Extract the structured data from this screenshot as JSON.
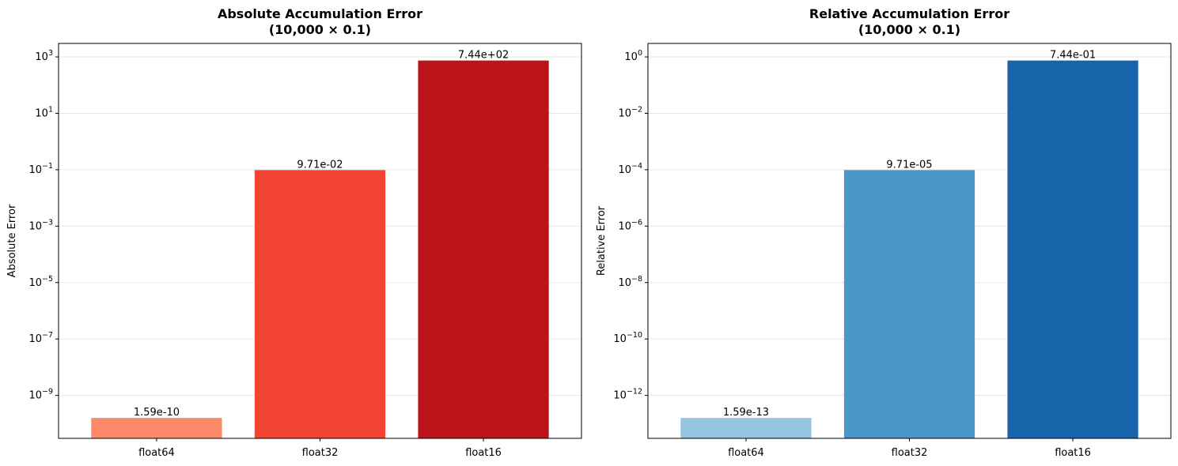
{
  "chart_data": [
    {
      "type": "bar",
      "title": [
        "Absolute Accumulation Error",
        "(10,000 × 0.1)"
      ],
      "xlabel": "",
      "ylabel": "Absolute Error",
      "yscale": "log",
      "ylim": [
        3e-11,
        3000
      ],
      "yticks": [
        {
          "base": "10",
          "exp": "−9"
        },
        {
          "base": "10",
          "exp": "−7"
        },
        {
          "base": "10",
          "exp": "−5"
        },
        {
          "base": "10",
          "exp": "−3"
        },
        {
          "base": "10",
          "exp": "−1"
        },
        {
          "base": "10",
          "exp": "1"
        },
        {
          "base": "10",
          "exp": "3"
        }
      ],
      "ytick_values": [
        1e-09,
        1e-07,
        1e-05,
        0.001,
        0.1,
        10,
        1000
      ],
      "grid": "y",
      "categories": [
        "float64",
        "float32",
        "float16"
      ],
      "values": [
        1.59e-10,
        0.0971,
        744
      ],
      "value_labels": [
        "1.59e-10",
        "9.71e-02",
        "7.44e+02"
      ],
      "colors": [
        "#fc8a6a",
        "#f14432",
        "#bc141a"
      ]
    },
    {
      "type": "bar",
      "title": [
        "Relative Accumulation Error",
        "(10,000 × 0.1)"
      ],
      "xlabel": "",
      "ylabel": "Relative Error",
      "yscale": "log",
      "ylim": [
        3e-14,
        3
      ],
      "yticks": [
        {
          "base": "10",
          "exp": "−12"
        },
        {
          "base": "10",
          "exp": "−10"
        },
        {
          "base": "10",
          "exp": "−8"
        },
        {
          "base": "10",
          "exp": "−6"
        },
        {
          "base": "10",
          "exp": "−4"
        },
        {
          "base": "10",
          "exp": "−2"
        },
        {
          "base": "10",
          "exp": "0"
        }
      ],
      "ytick_values": [
        1e-12,
        1e-10,
        1e-08,
        1e-06,
        0.0001,
        0.01,
        1
      ],
      "grid": "y",
      "categories": [
        "float64",
        "float32",
        "float16"
      ],
      "values": [
        1.59e-13,
        9.71e-05,
        0.744
      ],
      "value_labels": [
        "1.59e-13",
        "9.71e-05",
        "7.44e-01"
      ],
      "colors": [
        "#94c4df",
        "#4a98c9",
        "#1764ab"
      ]
    }
  ]
}
